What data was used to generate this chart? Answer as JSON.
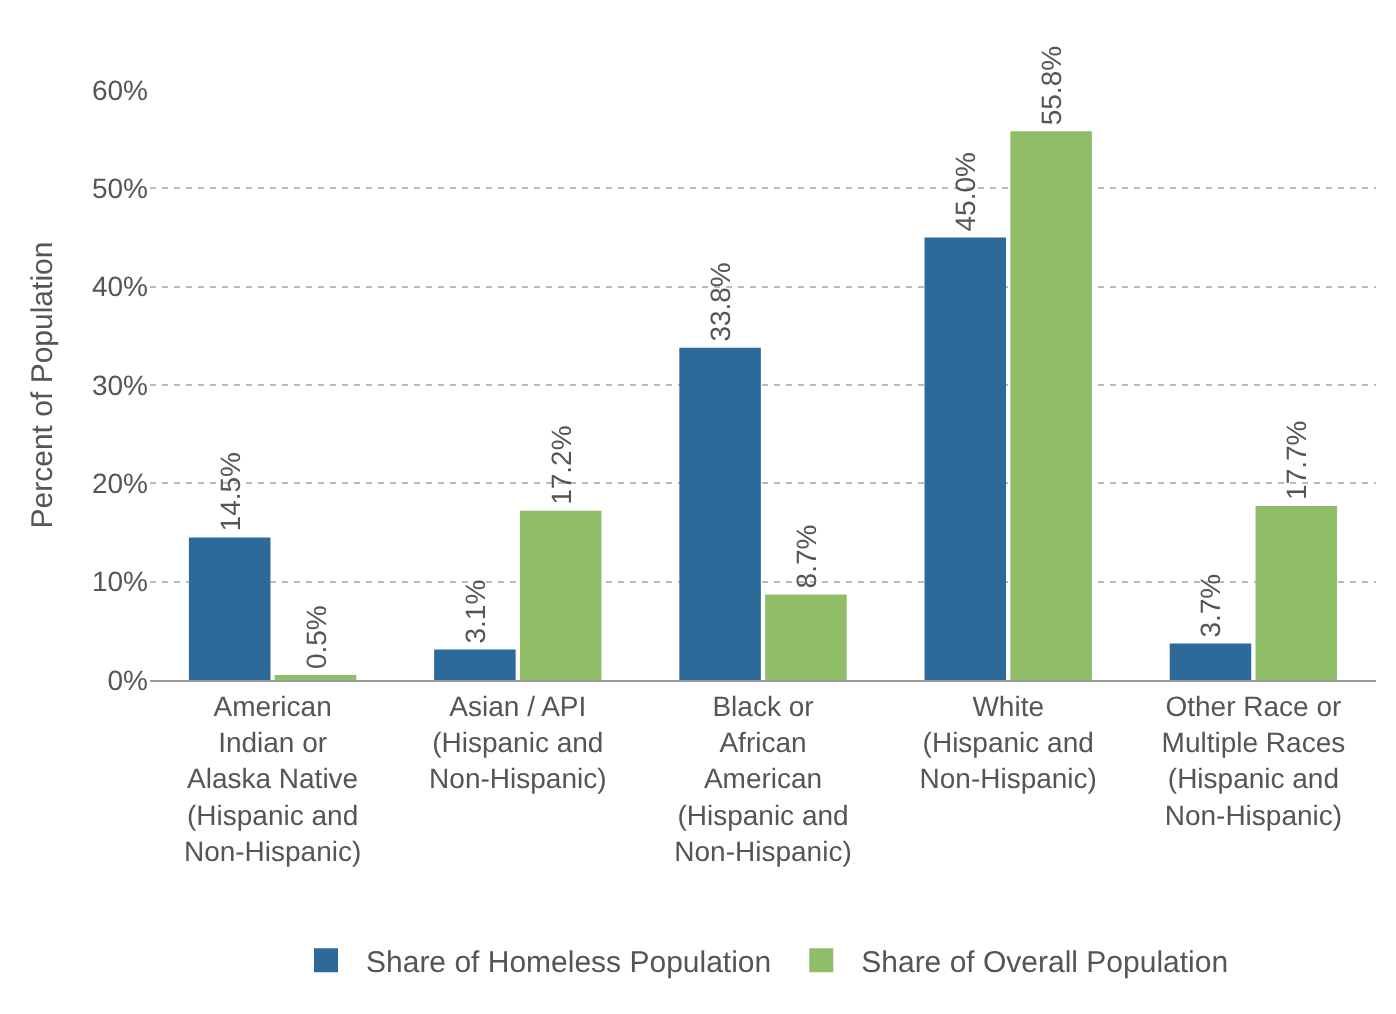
{
  "chart_data": {
    "type": "bar",
    "ylabel": "Percent of Population",
    "categories": [
      "American\nIndian or\nAlaska Native\n(Hispanic and\nNon-Hispanic)",
      "Asian / API\n(Hispanic and\nNon-Hispanic)",
      "Black or\nAfrican\nAmerican\n(Hispanic and\nNon-Hispanic)",
      "White\n(Hispanic and\nNon-Hispanic)",
      "Other Race or\nMultiple Races\n(Hispanic and\nNon-Hispanic)"
    ],
    "series": [
      {
        "name": "Share of Homeless Population",
        "color": "#2e6a99",
        "values": [
          14.5,
          3.1,
          33.8,
          45.0,
          3.7
        ],
        "value_labels": [
          "14.5%",
          "3.1%",
          "33.8%",
          "45.0%",
          "3.7%"
        ]
      },
      {
        "name": "Share of Overall Population",
        "color": "#8fbd68",
        "values": [
          0.5,
          17.2,
          8.7,
          55.8,
          17.7
        ],
        "value_labels": [
          "0.5%",
          "17.2%",
          "8.7%",
          "55.8%",
          "17.7%"
        ]
      }
    ],
    "ylim": [
      0,
      60
    ],
    "yticks": [
      {
        "value": 0,
        "label": "0%"
      },
      {
        "value": 10,
        "label": "10%"
      },
      {
        "value": 20,
        "label": "20%"
      },
      {
        "value": 30,
        "label": "30%"
      },
      {
        "value": 40,
        "label": "40%"
      },
      {
        "value": 50,
        "label": "50%"
      },
      {
        "value": 60,
        "label": "60%"
      }
    ],
    "grid": "y",
    "legend": "bottom"
  }
}
